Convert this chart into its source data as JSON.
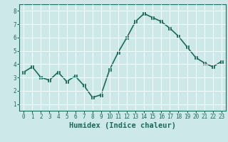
{
  "x": [
    0,
    1,
    2,
    3,
    4,
    5,
    6,
    7,
    8,
    9,
    10,
    11,
    12,
    13,
    14,
    15,
    16,
    17,
    18,
    19,
    20,
    21,
    22,
    23
  ],
  "y": [
    3.4,
    3.8,
    3.0,
    2.8,
    3.4,
    2.7,
    3.1,
    2.4,
    1.5,
    1.7,
    3.6,
    4.9,
    6.0,
    7.2,
    7.8,
    7.5,
    7.2,
    6.7,
    6.1,
    5.3,
    4.5,
    4.1,
    3.8,
    4.2
  ],
  "line_color": "#1a6b5a",
  "marker": "s",
  "marker_size": 2.2,
  "bg_color": "#cce8e8",
  "grid_color": "#ffffff",
  "xlabel": "Humidex (Indice chaleur)",
  "xlim": [
    -0.5,
    23.5
  ],
  "ylim": [
    0.5,
    8.5
  ],
  "yticks": [
    1,
    2,
    3,
    4,
    5,
    6,
    7,
    8
  ],
  "xticks": [
    0,
    1,
    2,
    3,
    4,
    5,
    6,
    7,
    8,
    9,
    10,
    11,
    12,
    13,
    14,
    15,
    16,
    17,
    18,
    19,
    20,
    21,
    22,
    23
  ],
  "tick_label_size": 5.5,
  "xlabel_size": 7.5,
  "line_width": 1.2
}
